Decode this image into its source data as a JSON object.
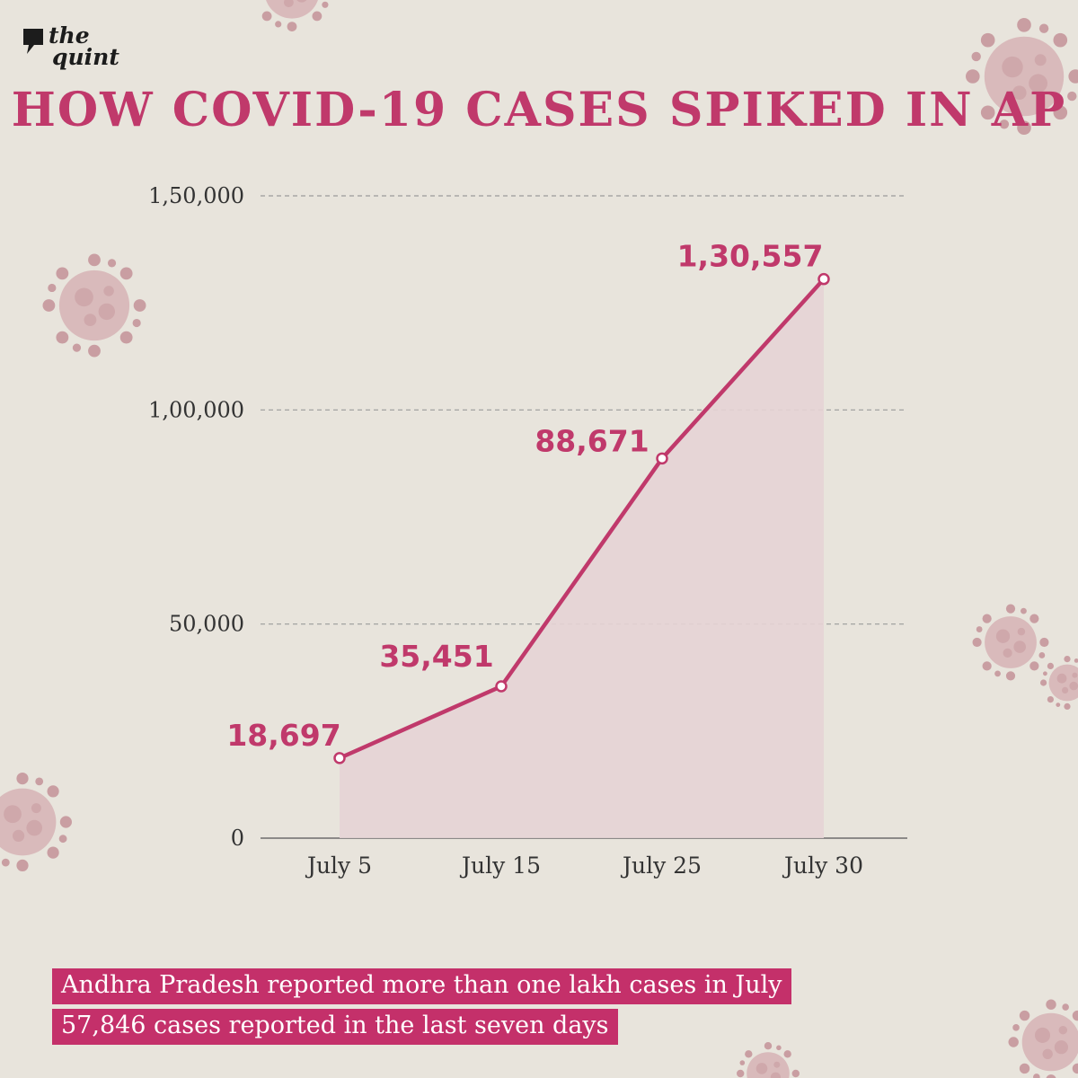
{
  "logo": {
    "line1": "the",
    "line2": "quint"
  },
  "title": "HOW COVID-19 CASES SPIKED IN AP",
  "chart_data": {
    "type": "area",
    "title": "HOW COVID-19 CASES SPIKED IN AP",
    "xlabel": "",
    "ylabel": "",
    "categories": [
      "July 5",
      "July 15",
      "July 25",
      "July 30"
    ],
    "values": [
      18697,
      35451,
      88671,
      130557
    ],
    "data_labels": [
      "18,697",
      "35,451",
      "88,671",
      "1,30,557"
    ],
    "yticks": [
      0,
      50000,
      100000,
      150000
    ],
    "ytick_labels": [
      "0",
      "50,000",
      "1,00,000",
      "1,50,000"
    ],
    "ylim": [
      0,
      150000
    ],
    "grid": "dashed horizontal",
    "legend": "none",
    "colors": {
      "line": "#c0396b",
      "fill": "#e5d3d5",
      "label": "#c0396b",
      "axis": "#555555",
      "grid": "#9a9a9a",
      "background": "#e8e4dc"
    }
  },
  "footer": {
    "line1": "Andhra Pradesh reported more than one lakh cases in July",
    "line2": "57,846 cases reported in the last seven days"
  },
  "decor": {
    "icon": "coronavirus-icon",
    "color": "#d4b1b3"
  }
}
